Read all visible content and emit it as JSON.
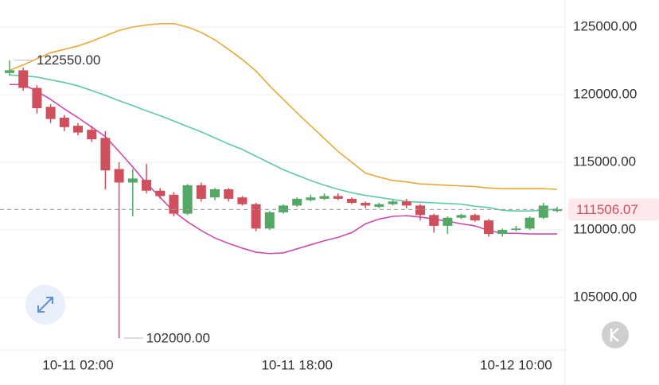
{
  "chart_data": {
    "type": "candlestick",
    "categories": [
      null,
      null,
      null,
      null,
      null,
      "10-11 02:00",
      null,
      null,
      null,
      null,
      null,
      null,
      null,
      null,
      null,
      null,
      null,
      null,
      null,
      null,
      null,
      "10-11 18:00",
      null,
      null,
      null,
      null,
      null,
      null,
      null,
      null,
      null,
      null,
      null,
      null,
      null,
      null,
      null,
      "10-12 10:00",
      null,
      null,
      null
    ],
    "open": [
      121600,
      121800,
      120500,
      119100,
      118300,
      117700,
      117400,
      116800,
      114500,
      113500,
      113700,
      112900,
      112600,
      111200,
      113300,
      112400,
      113000,
      112400,
      111900,
      110100,
      111300,
      111800,
      112200,
      112300,
      112500,
      112300,
      112000,
      111700,
      111900,
      112100,
      111800,
      111100,
      110300,
      110900,
      111100,
      110700,
      109700,
      110000,
      110100,
      110900,
      111400
    ],
    "high": [
      122550,
      122000,
      120700,
      119300,
      118500,
      117900,
      117700,
      117300,
      115000,
      114500,
      114900,
      113100,
      112800,
      113400,
      113500,
      113100,
      113100,
      112500,
      112000,
      111400,
      111900,
      112400,
      112600,
      112700,
      112700,
      112400,
      112100,
      112000,
      112200,
      112300,
      111900,
      111200,
      111000,
      111200,
      111200,
      110800,
      110100,
      110300,
      111000,
      112000,
      111700
    ],
    "low": [
      121400,
      120300,
      118600,
      117900,
      117300,
      117000,
      116500,
      113000,
      102000,
      111000,
      112700,
      112300,
      111000,
      111100,
      112100,
      112200,
      112100,
      111800,
      109900,
      110000,
      111200,
      111700,
      112100,
      112200,
      112200,
      111900,
      111600,
      111600,
      111800,
      111600,
      110700,
      109800,
      109700,
      110800,
      110600,
      109500,
      109500,
      109900,
      110000,
      110800,
      111300
    ],
    "close": [
      121800,
      120500,
      119000,
      118200,
      117600,
      117200,
      116700,
      114400,
      113500,
      113800,
      112900,
      112500,
      111200,
      113300,
      112300,
      113000,
      112300,
      111900,
      110100,
      111300,
      111800,
      112300,
      112400,
      112500,
      112300,
      112000,
      111800,
      111900,
      112100,
      111800,
      111100,
      110300,
      110900,
      111100,
      110700,
      109700,
      110000,
      110100,
      110900,
      111800,
      111506.07
    ],
    "up_color": "#52a864",
    "down_color": "#cf4f5c",
    "lines": [
      {
        "color": "#e8a93a",
        "values": [
          121800,
          122200,
          122650,
          123100,
          123350,
          123600,
          123950,
          124350,
          124750,
          125000,
          125150,
          125250,
          125250,
          125000,
          124600,
          124050,
          123350,
          122600,
          121750,
          120650,
          119650,
          118650,
          117700,
          116750,
          115800,
          115000,
          114200,
          113900,
          113650,
          113550,
          113400,
          113350,
          113300,
          113250,
          113200,
          113100,
          113050,
          113050,
          113050,
          113050,
          113000
        ]
      },
      {
        "color": "#5cc9a7",
        "values": [
          121450,
          121400,
          121300,
          121100,
          120900,
          120650,
          120300,
          119950,
          119550,
          119200,
          118800,
          118450,
          118050,
          117650,
          117250,
          116800,
          116350,
          115950,
          115450,
          114950,
          114450,
          114050,
          113650,
          113300,
          113000,
          112750,
          112550,
          112400,
          112250,
          112100,
          112050,
          112000,
          111950,
          111900,
          111750,
          111650,
          111450,
          111400,
          111400,
          111450,
          111550
        ]
      },
      {
        "color": "#c94bb0",
        "values": [
          120750,
          120750,
          120250,
          119650,
          118950,
          118300,
          117600,
          116900,
          115800,
          114650,
          113450,
          112400,
          111350,
          110600,
          109950,
          109400,
          109000,
          108650,
          108350,
          108250,
          108300,
          108600,
          108900,
          109200,
          109450,
          109800,
          110450,
          110800,
          111000,
          111050,
          110950,
          110800,
          110650,
          110450,
          110300,
          109950,
          109750,
          109750,
          109700,
          109700,
          109700
        ]
      }
    ],
    "ylim": [
      101118,
      127000
    ],
    "yticks": [
      {
        "value": 105000,
        "label": "105000.00"
      },
      {
        "value": 110000,
        "label": "110000.00"
      },
      {
        "value": 115000,
        "label": "115000.00"
      },
      {
        "value": 120000,
        "label": "120000.00"
      },
      {
        "value": 125000,
        "label": "125000.00"
      }
    ],
    "grid": true,
    "high_label": {
      "value": 122550,
      "label": "122550.00"
    },
    "low_label": {
      "value": 102000,
      "label": "102000.00"
    },
    "last_price": 111506.07
  }
}
